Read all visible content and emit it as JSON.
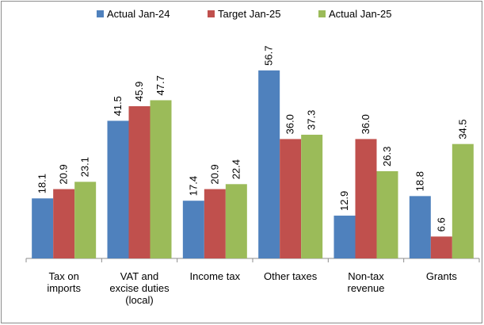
{
  "chart_data": {
    "type": "bar",
    "categories": [
      "Tax on imports",
      "VAT and excise duties (local)",
      "Income tax",
      "Other taxes",
      "Non-tax revenue",
      "Grants"
    ],
    "series": [
      {
        "name": "Actual Jan-24",
        "color": "#4f81bd",
        "values": [
          18.1,
          41.5,
          17.4,
          56.7,
          12.9,
          18.8
        ],
        "value_labels": [
          "18.1",
          "41.5",
          "17.4",
          "56.7",
          "12.9",
          "18.8"
        ]
      },
      {
        "name": "Target Jan-25",
        "color": "#c0504d",
        "values": [
          20.9,
          45.9,
          20.9,
          36,
          36,
          6.6
        ],
        "value_labels": [
          "20.9",
          "45.9",
          "20.9",
          "36.0",
          "36.0",
          "6.6"
        ]
      },
      {
        "name": "Actual Jan-25",
        "color": "#9bbb59",
        "values": [
          23.1,
          47.7,
          22.4,
          37.3,
          26.3,
          34.5
        ],
        "value_labels": [
          "23.1",
          "47.7",
          "22.4",
          "37.3",
          "26.3",
          "34.5"
        ]
      }
    ],
    "ylim": [
      0,
      60
    ]
  }
}
